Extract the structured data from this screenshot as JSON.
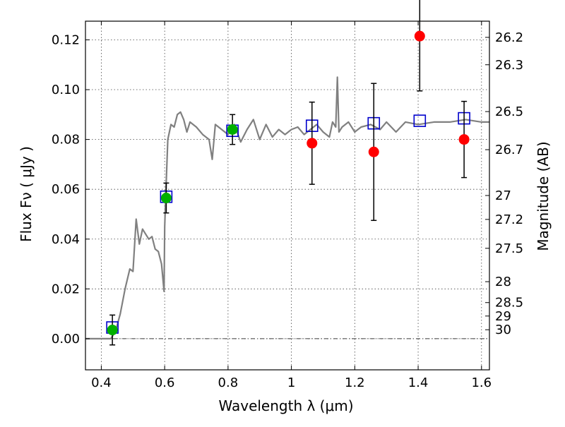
{
  "chart_data": {
    "type": "scatter",
    "title": "",
    "xlabel": "Wavelength  λ (μm)",
    "ylabel": "Flux  Fν  ( μJy )",
    "y2label": "Magnitude (AB)",
    "xlim": [
      0.35,
      1.625
    ],
    "ylim": [
      -0.0125,
      0.1275
    ],
    "grid": true,
    "legend": "none",
    "x_ticks": [
      0.4,
      0.6,
      0.8,
      1.0,
      1.2,
      1.4,
      1.6
    ],
    "x_tick_labels": [
      "0.4",
      "0.6",
      "0.8",
      "1",
      "1.2",
      "1.4",
      "1.6"
    ],
    "y_ticks": [
      0.0,
      0.02,
      0.04,
      0.06,
      0.08,
      0.1,
      0.12
    ],
    "y_tick_labels": [
      "0.00",
      "0.02",
      "0.04",
      "0.06",
      "0.08",
      "0.10",
      "0.12"
    ],
    "mag_ticks": [
      {
        "label": "26.2",
        "flux": 0.121
      },
      {
        "label": "26.3",
        "flux": 0.11
      },
      {
        "label": "26.5",
        "flux": 0.0912
      },
      {
        "label": "26.7",
        "flux": 0.0759
      },
      {
        "label": "27",
        "flux": 0.0575
      },
      {
        "label": "27.2",
        "flux": 0.0479
      },
      {
        "label": "27.5",
        "flux": 0.0363
      },
      {
        "label": "28",
        "flux": 0.0229
      },
      {
        "label": "28.5",
        "flux": 0.0145
      },
      {
        "label": "29",
        "flux": 0.0091
      },
      {
        "label": "30",
        "flux": 0.0036
      }
    ],
    "colors": {
      "model": "#808080",
      "optical_points": "#00b000",
      "nir_points": "#ff0000",
      "model_squares": "#0000cc",
      "errorbar": "#000000",
      "grid": "#444444"
    },
    "model_spectrum": {
      "x": [
        0.35,
        0.43,
        0.445,
        0.46,
        0.475,
        0.49,
        0.5,
        0.51,
        0.52,
        0.53,
        0.54,
        0.55,
        0.56,
        0.57,
        0.58,
        0.59,
        0.598,
        0.6,
        0.604,
        0.61,
        0.62,
        0.63,
        0.64,
        0.65,
        0.66,
        0.67,
        0.68,
        0.7,
        0.72,
        0.74,
        0.75,
        0.76,
        0.78,
        0.8,
        0.82,
        0.84,
        0.86,
        0.88,
        0.9,
        0.92,
        0.94,
        0.96,
        0.98,
        1.0,
        1.02,
        1.04,
        1.06,
        1.08,
        1.1,
        1.12,
        1.13,
        1.14,
        1.145,
        1.15,
        1.16,
        1.18,
        1.2,
        1.22,
        1.25,
        1.28,
        1.3,
        1.33,
        1.36,
        1.4,
        1.45,
        1.5,
        1.55,
        1.6,
        1.625
      ],
      "y": [
        0.0,
        0.0,
        0.003,
        0.01,
        0.02,
        0.028,
        0.027,
        0.048,
        0.038,
        0.044,
        0.042,
        0.04,
        0.041,
        0.036,
        0.035,
        0.03,
        0.019,
        0.045,
        0.06,
        0.08,
        0.086,
        0.085,
        0.09,
        0.091,
        0.088,
        0.083,
        0.087,
        0.085,
        0.082,
        0.08,
        0.072,
        0.086,
        0.084,
        0.082,
        0.086,
        0.079,
        0.084,
        0.088,
        0.08,
        0.086,
        0.081,
        0.084,
        0.082,
        0.084,
        0.085,
        0.082,
        0.084,
        0.086,
        0.083,
        0.081,
        0.087,
        0.085,
        0.105,
        0.083,
        0.085,
        0.087,
        0.083,
        0.085,
        0.086,
        0.084,
        0.087,
        0.083,
        0.087,
        0.086,
        0.087,
        0.087,
        0.088,
        0.087,
        0.087
      ]
    },
    "model_squares": [
      {
        "x": 0.435,
        "y": 0.0045
      },
      {
        "x": 0.605,
        "y": 0.057
      },
      {
        "x": 0.814,
        "y": 0.0835
      },
      {
        "x": 1.065,
        "y": 0.0855
      },
      {
        "x": 1.26,
        "y": 0.0865
      },
      {
        "x": 1.405,
        "y": 0.0875
      },
      {
        "x": 1.545,
        "y": 0.0885
      }
    ],
    "series": [
      {
        "color": "#00b000",
        "points": [
          {
            "x": 0.435,
            "y": 0.0035,
            "err": 0.006
          },
          {
            "x": 0.605,
            "y": 0.0565,
            "err": 0.006
          },
          {
            "x": 0.814,
            "y": 0.084,
            "err": 0.006
          }
        ]
      },
      {
        "color": "#ff0000",
        "points": [
          {
            "x": 1.065,
            "y": 0.0785,
            "err": 0.0165
          },
          {
            "x": 1.26,
            "y": 0.075,
            "err": 0.0275
          },
          {
            "x": 1.405,
            "y": 0.1215,
            "err": 0.022
          },
          {
            "x": 1.545,
            "y": 0.08,
            "err": 0.0153
          }
        ]
      }
    ]
  }
}
